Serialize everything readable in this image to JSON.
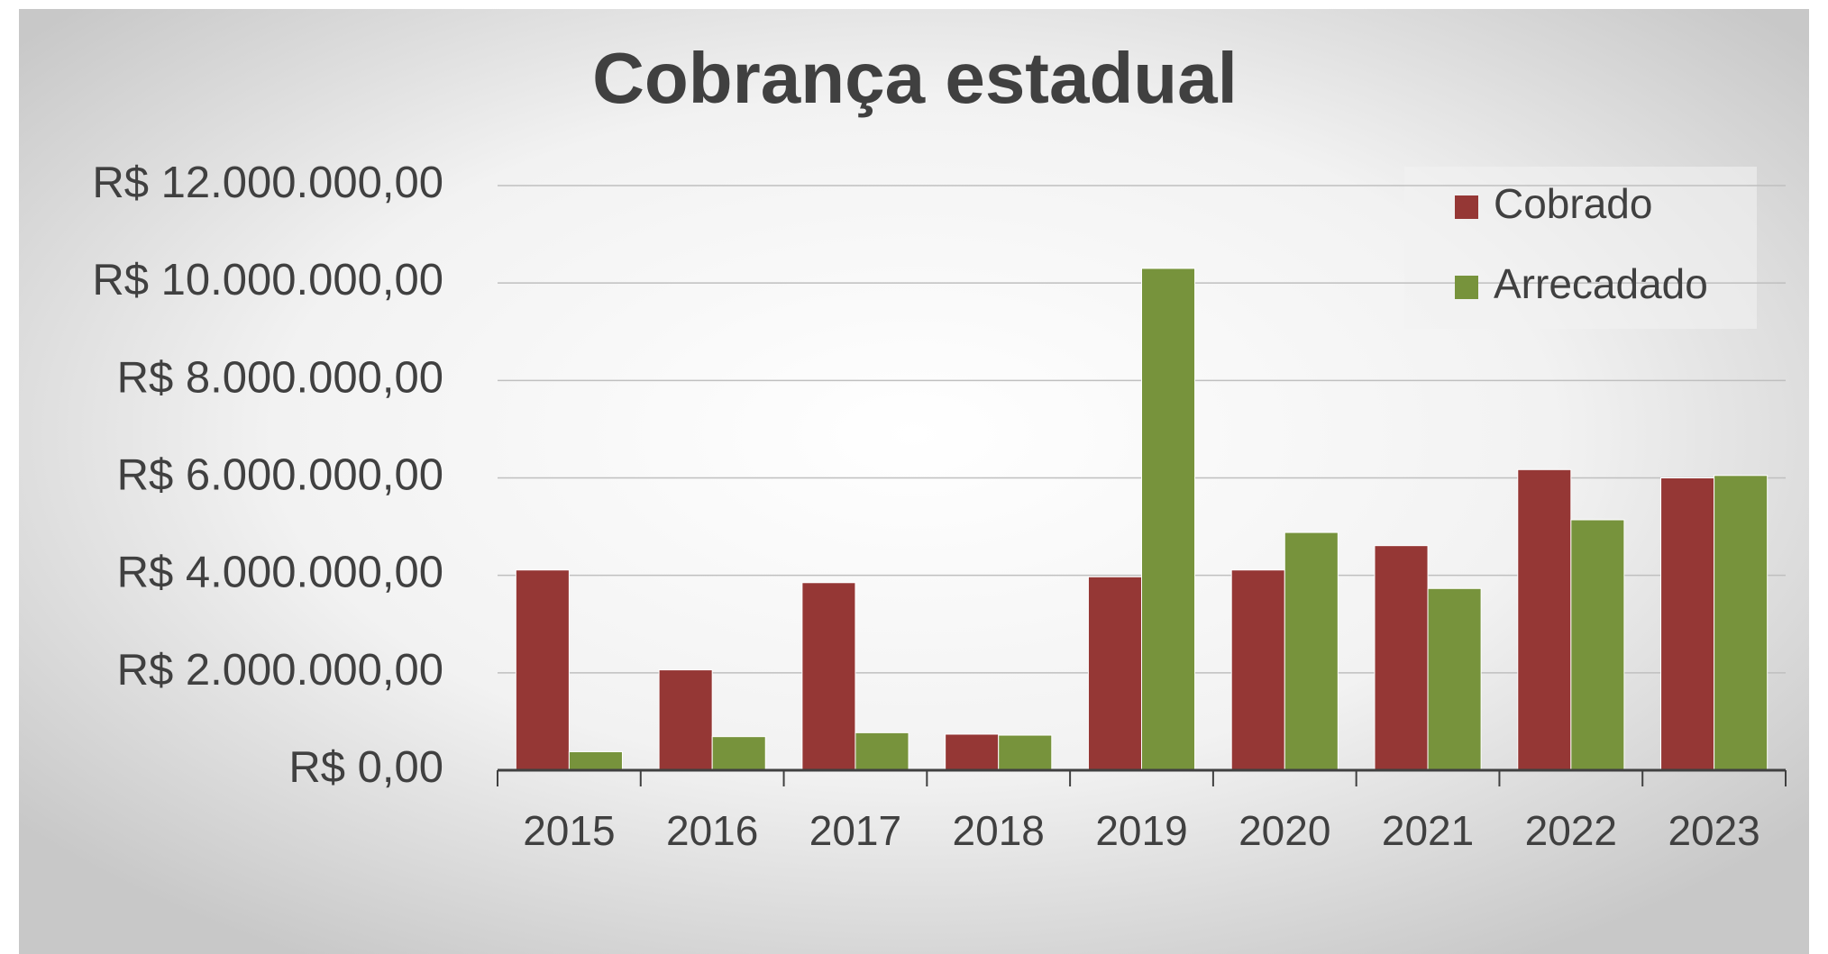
{
  "chart_data": {
    "type": "bar",
    "title": "Cobrança estadual",
    "categories": [
      "2015",
      "2016",
      "2017",
      "2018",
      "2019",
      "2020",
      "2021",
      "2022",
      "2023"
    ],
    "series": [
      {
        "name": "Cobrado",
        "color": "#953735",
        "values": [
          4110000,
          2060000,
          3850000,
          740000,
          3970000,
          4110000,
          4610000,
          6170000,
          6000000
        ]
      },
      {
        "name": "Arrecadado",
        "color": "#77933c",
        "values": [
          380000,
          690000,
          770000,
          720000,
          10300000,
          4880000,
          3730000,
          5140000,
          6050000
        ]
      }
    ],
    "ylim": [
      0,
      12000000
    ],
    "yticks": [
      {
        "value": 0,
        "label": "R$ 0,00"
      },
      {
        "value": 2000000,
        "label": "R$ 2.000.000,00"
      },
      {
        "value": 4000000,
        "label": "R$ 4.000.000,00"
      },
      {
        "value": 6000000,
        "label": "R$ 6.000.000,00"
      },
      {
        "value": 8000000,
        "label": "R$ 8.000.000,00"
      },
      {
        "value": 10000000,
        "label": "R$ 10.000.000,00"
      },
      {
        "value": 12000000,
        "label": "R$ 12.000.000,00"
      }
    ],
    "grid": true,
    "legend": "upper right"
  }
}
